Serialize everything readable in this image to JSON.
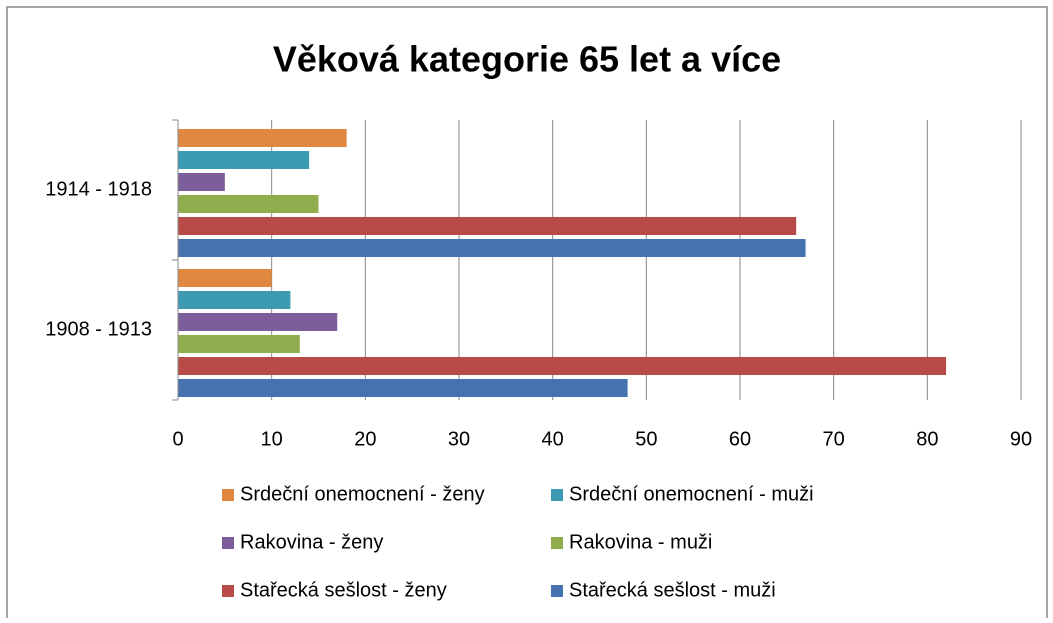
{
  "chart_data": {
    "type": "barh",
    "title": "Věková kategorie  65 let a více",
    "categories": [
      "1908 - 1913",
      "1914 - 1918"
    ],
    "series": [
      {
        "name": "Srdeční onemocnení - ženy",
        "color": "#e0883f",
        "values": [
          10,
          18
        ]
      },
      {
        "name": "Srdeční onemocnení - muži",
        "color": "#3c9bb2",
        "values": [
          12,
          14
        ]
      },
      {
        "name": "Rakovina - ženy",
        "color": "#7c5e9c",
        "values": [
          17,
          5
        ]
      },
      {
        "name": "Rakovina - muži",
        "color": "#8fad4d",
        "values": [
          13,
          15
        ]
      },
      {
        "name": "Stařecká sešlost - ženy",
        "color": "#b84a47",
        "values": [
          82,
          66
        ]
      },
      {
        "name": "Stařecká sešlost - muži",
        "color": "#4673b0",
        "values": [
          48,
          67
        ]
      }
    ],
    "xlim": [
      0,
      90
    ],
    "xticks": [
      0,
      10,
      20,
      30,
      40,
      50,
      60,
      70,
      80,
      90
    ],
    "grid": true,
    "legend": "bottom"
  }
}
